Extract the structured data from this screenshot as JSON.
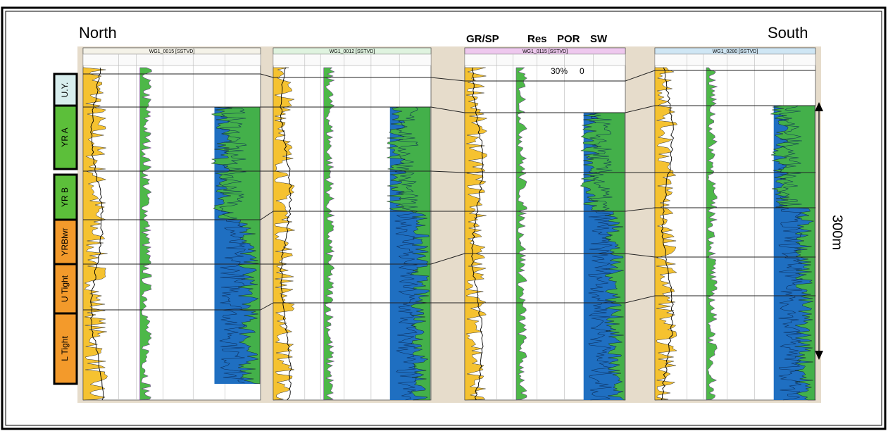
{
  "labels": {
    "north": "North",
    "south": "South",
    "gr_sp": "GR/SP",
    "res": "Res",
    "por": "POR",
    "sw": "SW",
    "por_max": "30%",
    "por_min": "0",
    "scale": "300m"
  },
  "zones": [
    "U.Y.",
    "YR A",
    "YR B",
    "YRBlwr",
    "U Tight",
    "L Tight"
  ],
  "wells": [
    "WG1_0015 [SSTVD]",
    "WG1_0012 [SSTVD]",
    "WG1_0115 [SSTVD]",
    "WG1_0280 [SSTVD]"
  ]
}
